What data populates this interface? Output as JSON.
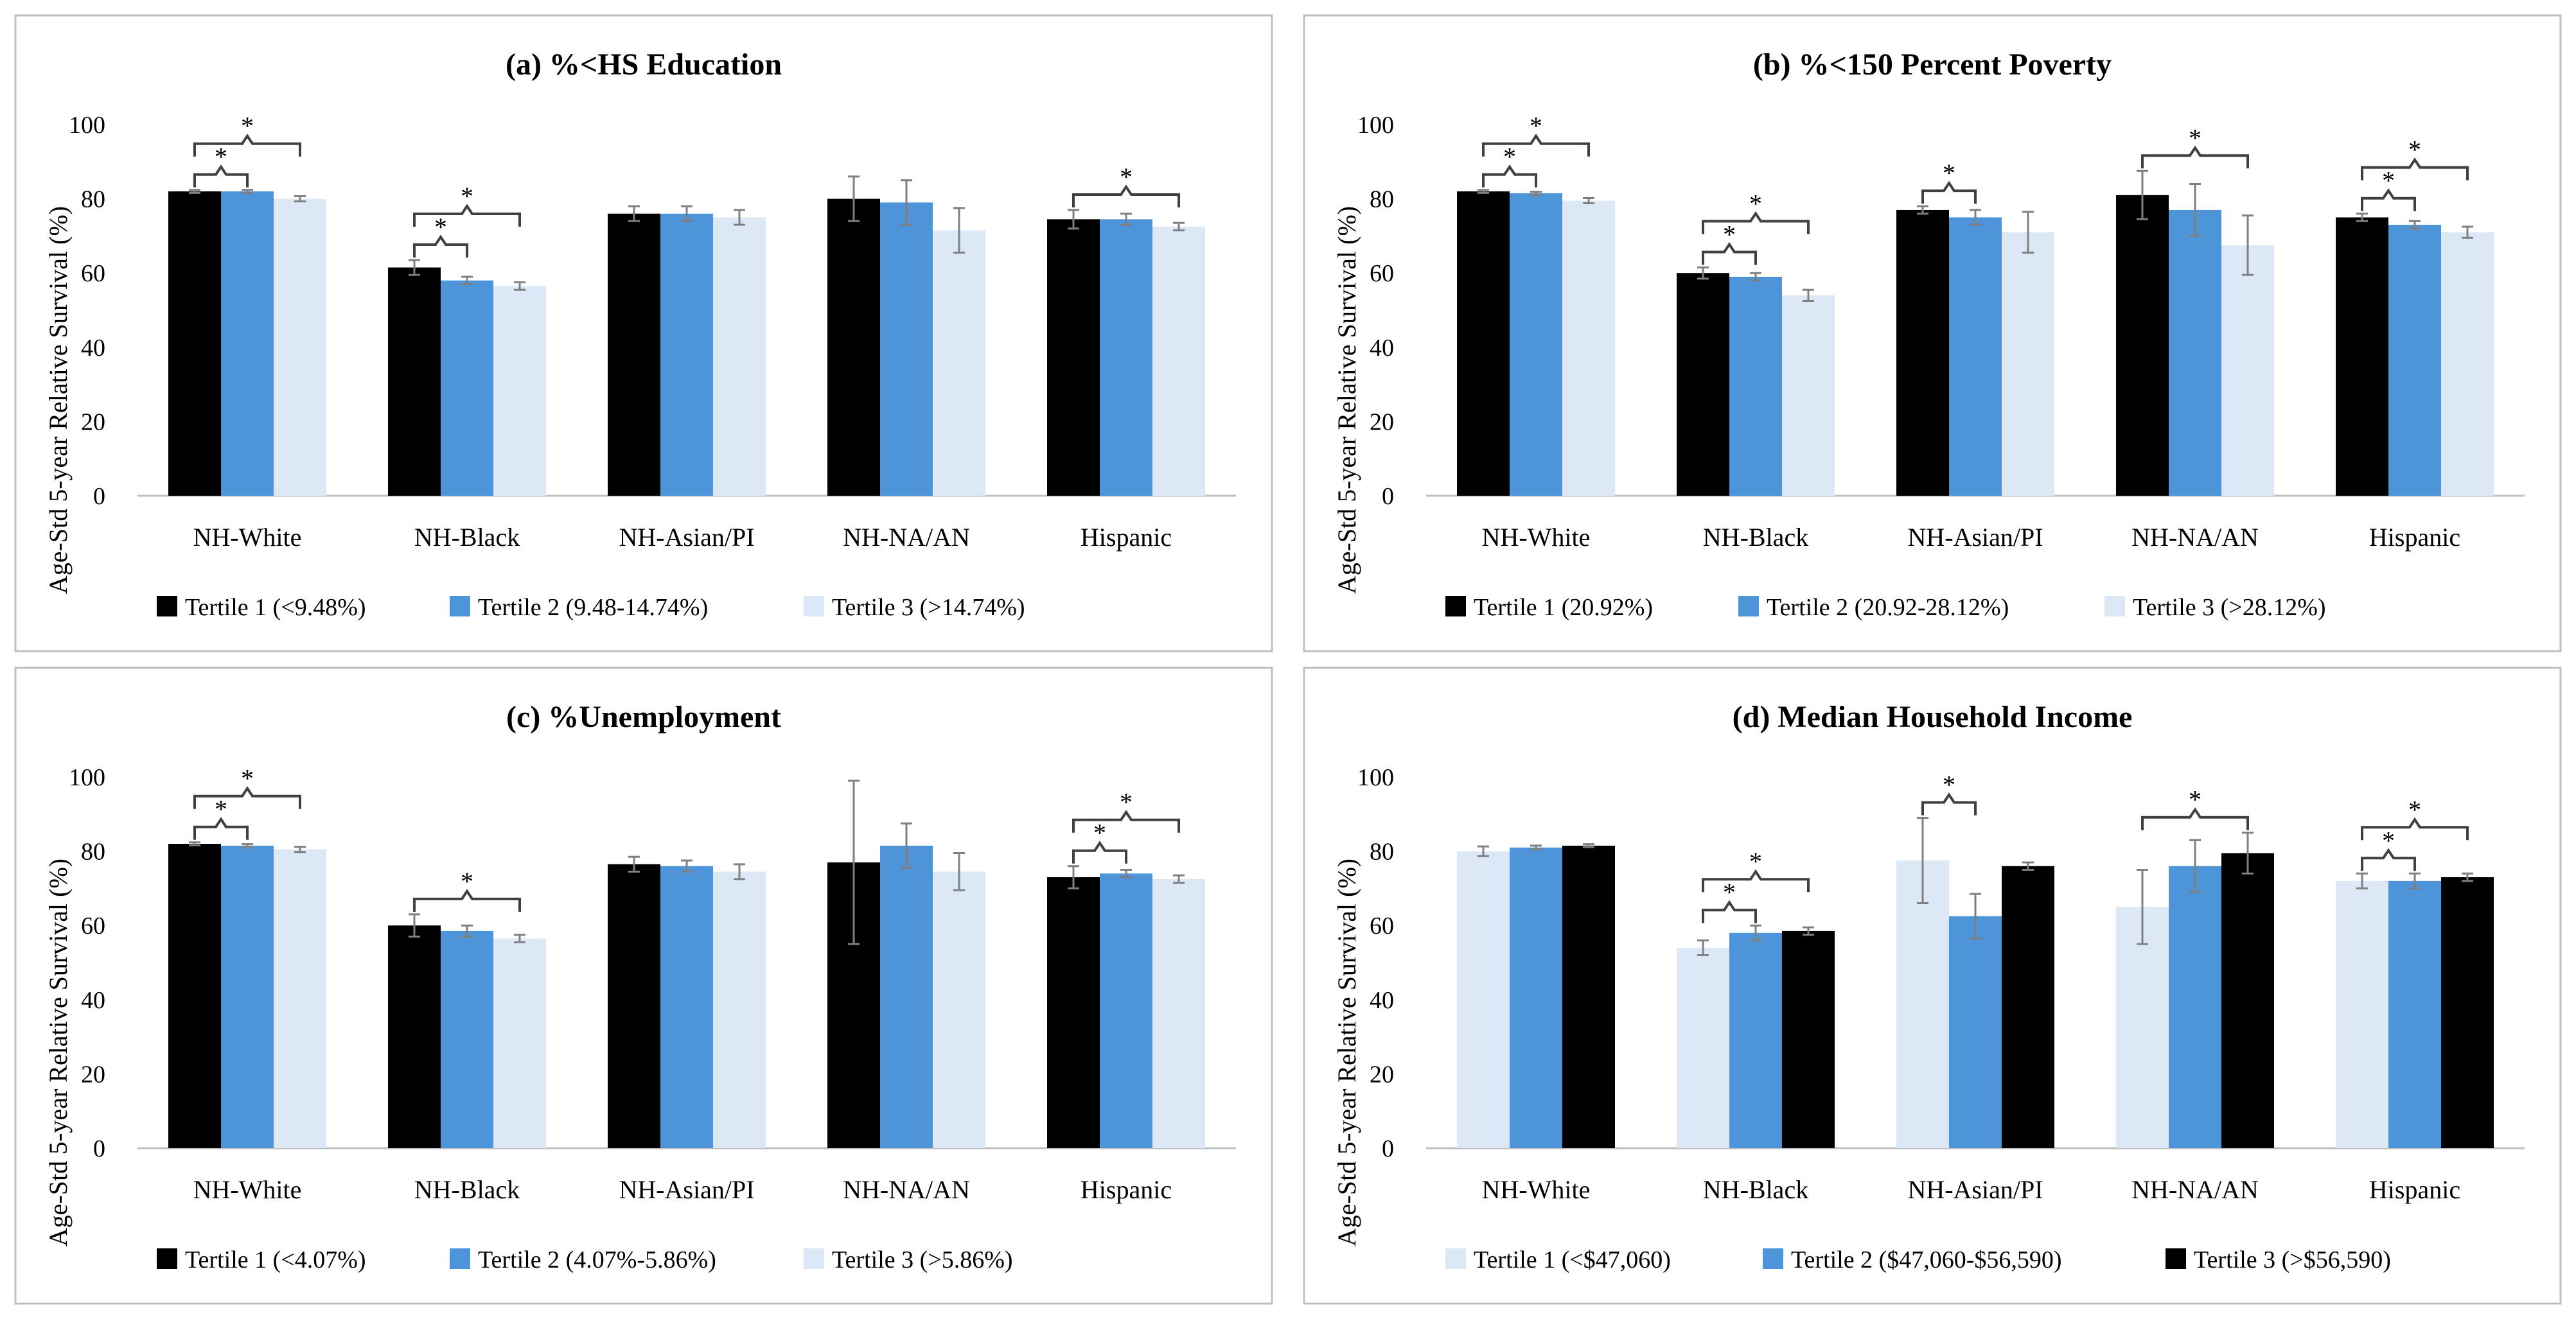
{
  "chart_data": [
    {
      "type": "bar",
      "title": "(a) %<HS Education",
      "ylabel": "Age-Std 5-year Relative Survival (%)",
      "ylim": [
        0,
        100
      ],
      "yticks": [
        "0",
        "20",
        "40",
        "60",
        "80",
        "100"
      ],
      "categories": [
        "NH-White",
        "NH-Black",
        "NH-Asian/PI",
        "NH-NA/AN",
        "Hispanic"
      ],
      "series": [
        {
          "name": "Tertile 1 (<9.48%)",
          "color": "#000000",
          "values": [
            82,
            61.5,
            76,
            80,
            74.5
          ],
          "err": [
            0.4,
            2,
            2,
            6,
            2.5
          ]
        },
        {
          "name": "Tertile 2 (9.48-14.74%)",
          "color": "#4e94d8",
          "values": [
            82,
            58,
            76,
            79,
            74.5
          ],
          "err": [
            0.4,
            1,
            2,
            6,
            1.5
          ]
        },
        {
          "name": "Tertile 3 (>14.74%)",
          "color": "#dce8f5",
          "values": [
            80,
            56.5,
            75,
            71.5,
            72.5
          ],
          "err": [
            0.7,
            1,
            2,
            6,
            1
          ]
        }
      ],
      "brackets": [
        {
          "cat": 0,
          "from": 0,
          "to": 1,
          "level": 1,
          "label": "*"
        },
        {
          "cat": 0,
          "from": 0,
          "to": 2,
          "level": 2,
          "label": "*"
        },
        {
          "cat": 1,
          "from": 0,
          "to": 1,
          "level": 1,
          "label": "*"
        },
        {
          "cat": 1,
          "from": 0,
          "to": 2,
          "level": 2,
          "label": "*"
        },
        {
          "cat": 4,
          "from": 0,
          "to": 2,
          "level": 1,
          "label": "*"
        }
      ]
    },
    {
      "type": "bar",
      "title": "(b) %<150 Percent Poverty",
      "ylabel": "Age-Std 5-year Relative Survival (%)",
      "ylim": [
        0,
        100
      ],
      "yticks": [
        "0",
        "20",
        "40",
        "60",
        "80",
        "100"
      ],
      "categories": [
        "NH-White",
        "NH-Black",
        "NH-Asian/PI",
        "NH-NA/AN",
        "Hispanic"
      ],
      "series": [
        {
          "name": "Tertile 1 (20.92%)",
          "color": "#000000",
          "values": [
            82,
            60,
            77,
            81,
            75
          ],
          "err": [
            0.4,
            1.5,
            1,
            6.5,
            1
          ]
        },
        {
          "name": "Tertile 2 (20.92-28.12%)",
          "color": "#4e94d8",
          "values": [
            81.5,
            59,
            75,
            77,
            73
          ],
          "err": [
            0.4,
            1,
            2,
            7,
            1
          ]
        },
        {
          "name": "Tertile 3 (>28.12%)",
          "color": "#dce8f5",
          "values": [
            79.5,
            54,
            71,
            67.5,
            71
          ],
          "err": [
            0.7,
            1.5,
            5.5,
            8,
            1.5
          ]
        }
      ],
      "brackets": [
        {
          "cat": 0,
          "from": 0,
          "to": 1,
          "level": 1,
          "label": "*"
        },
        {
          "cat": 0,
          "from": 0,
          "to": 2,
          "level": 2,
          "label": "*"
        },
        {
          "cat": 1,
          "from": 0,
          "to": 1,
          "level": 1,
          "label": "*"
        },
        {
          "cat": 1,
          "from": 0,
          "to": 2,
          "level": 2,
          "label": "*"
        },
        {
          "cat": 2,
          "from": 0,
          "to": 1,
          "level": 1,
          "label": "*"
        },
        {
          "cat": 3,
          "from": 0,
          "to": 2,
          "level": 1,
          "label": "*"
        },
        {
          "cat": 4,
          "from": 0,
          "to": 1,
          "level": 1,
          "label": "*"
        },
        {
          "cat": 4,
          "from": 0,
          "to": 2,
          "level": 2,
          "label": "*"
        }
      ]
    },
    {
      "type": "bar",
      "title": "(c) %Unemployment",
      "ylabel": "Age-Std 5-year Relative Survival (%)",
      "ylim": [
        0,
        100
      ],
      "yticks": [
        "0",
        "20",
        "40",
        "60",
        "80",
        "100"
      ],
      "categories": [
        "NH-White",
        "NH-Black",
        "NH-Asian/PI",
        "NH-NA/AN",
        "Hispanic"
      ],
      "series": [
        {
          "name": "Tertile 1 (<4.07%)",
          "color": "#000000",
          "values": [
            82,
            60,
            76.5,
            77,
            73
          ],
          "err": [
            0.4,
            3,
            2,
            22,
            3
          ]
        },
        {
          "name": "Tertile 2 (4.07%-5.86%)",
          "color": "#4e94d8",
          "values": [
            81.5,
            58.5,
            76,
            81.5,
            74
          ],
          "err": [
            0.4,
            1.5,
            1.5,
            6,
            1
          ]
        },
        {
          "name": "Tertile 3 (>5.86%)",
          "color": "#dce8f5",
          "values": [
            80.5,
            56.5,
            74.5,
            74.5,
            72.5
          ],
          "err": [
            0.7,
            1,
            2,
            5,
            1
          ]
        }
      ],
      "brackets": [
        {
          "cat": 0,
          "from": 0,
          "to": 1,
          "level": 1,
          "label": "*"
        },
        {
          "cat": 0,
          "from": 0,
          "to": 2,
          "level": 2,
          "label": "*"
        },
        {
          "cat": 1,
          "from": 0,
          "to": 2,
          "level": 1,
          "label": "*"
        },
        {
          "cat": 4,
          "from": 0,
          "to": 1,
          "level": 1,
          "label": "*"
        },
        {
          "cat": 4,
          "from": 0,
          "to": 2,
          "level": 2,
          "label": "*"
        }
      ]
    },
    {
      "type": "bar",
      "title": "(d) Median Household Income",
      "ylabel": "Age-Std 5-year Relative Survival (%)",
      "ylim": [
        0,
        100
      ],
      "yticks": [
        "0",
        "20",
        "40",
        "60",
        "80",
        "100"
      ],
      "categories": [
        "NH-White",
        "NH-Black",
        "NH-Asian/PI",
        "NH-NA/AN",
        "Hispanic"
      ],
      "series": [
        {
          "name": "Tertile 1 (<$47,060)",
          "color": "#dce8f5",
          "values": [
            80,
            54,
            77.5,
            65,
            72
          ],
          "err": [
            1.3,
            2,
            11.5,
            10,
            2
          ]
        },
        {
          "name": "Tertile 2 ($47,060-$56,590)",
          "color": "#4e94d8",
          "values": [
            81,
            58,
            62.5,
            76,
            72
          ],
          "err": [
            0.5,
            2,
            6,
            7,
            2
          ]
        },
        {
          "name": "Tertile 3 (>$56,590)",
          "color": "#000000",
          "values": [
            81.5,
            58.5,
            76,
            79.5,
            73
          ],
          "err": [
            0.4,
            1,
            1,
            5.5,
            1
          ]
        }
      ],
      "brackets": [
        {
          "cat": 1,
          "from": 0,
          "to": 1,
          "level": 1,
          "label": "*"
        },
        {
          "cat": 1,
          "from": 0,
          "to": 2,
          "level": 2,
          "label": "*"
        },
        {
          "cat": 2,
          "from": 0,
          "to": 1,
          "level": 1,
          "label": "*"
        },
        {
          "cat": 3,
          "from": 0,
          "to": 2,
          "level": 1,
          "label": "*"
        },
        {
          "cat": 4,
          "from": 0,
          "to": 1,
          "level": 1,
          "label": "*"
        },
        {
          "cat": 4,
          "from": 0,
          "to": 2,
          "level": 2,
          "label": "*"
        }
      ]
    }
  ]
}
